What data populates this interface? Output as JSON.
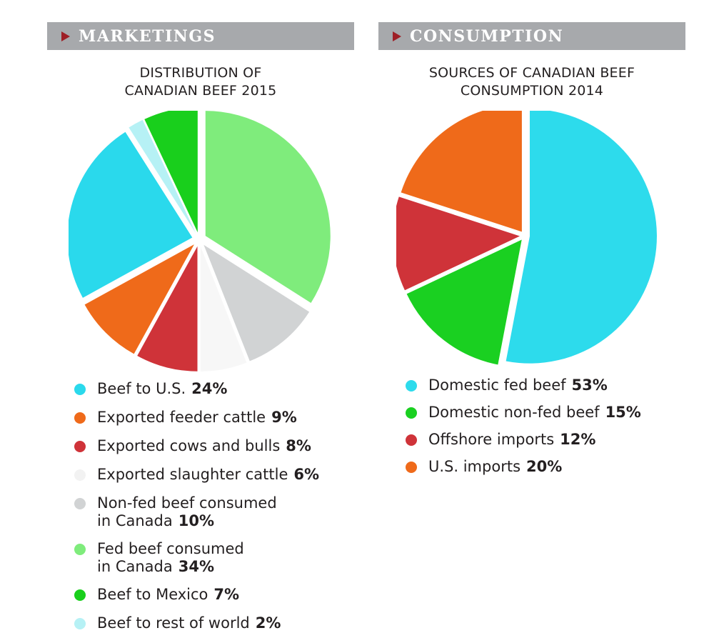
{
  "chart_data": [
    {
      "type": "pie",
      "section": "MARKETINGS",
      "title": "DISTRIBUTION OF CANADIAN BEEF 2015",
      "title_lines": [
        "DISTRIBUTION OF",
        "CANADIAN BEEF 2015"
      ],
      "start_angle_deg": 0,
      "slices": [
        {
          "label": "Fed beef consumed in Canada",
          "lines": [
            "Fed beef consumed",
            "in Canada"
          ],
          "value": 34,
          "display": "34%",
          "color": "#7fec7c"
        },
        {
          "label": "Non-fed beef consumed in Canada",
          "lines": [
            "Non-fed beef consumed",
            "in Canada"
          ],
          "value": 10,
          "display": "10%",
          "color": "#d1d3d4"
        },
        {
          "label": "Exported slaughter cattle",
          "lines": [
            "Exported slaughter cattle"
          ],
          "value": 6,
          "display": "6%",
          "color": "#f7f7f7"
        },
        {
          "label": "Exported cows and bulls",
          "lines": [
            "Exported cows and bulls"
          ],
          "value": 8,
          "display": "8%",
          "color": "#cf3339"
        },
        {
          "label": "Exported feeder cattle",
          "lines": [
            "Exported feeder cattle"
          ],
          "value": 9,
          "display": "9%",
          "color": "#ef6a1a"
        },
        {
          "label": "Beef to U.S.",
          "lines": [
            "Beef to U.S."
          ],
          "value": 24,
          "display": "24%",
          "color": "#2ad9ec"
        },
        {
          "label": "Beef to rest of world",
          "lines": [
            "Beef to rest of world"
          ],
          "value": 2,
          "display": "2%",
          "color": "#b6f1f5"
        },
        {
          "label": "Beef to Mexico",
          "lines": [
            "Beef to Mexico"
          ],
          "value": 7,
          "display": "7%",
          "color": "#19cf1c"
        }
      ],
      "legend_order": [
        5,
        4,
        3,
        2,
        1,
        0,
        7,
        6
      ]
    },
    {
      "type": "pie",
      "section": "CONSUMPTION",
      "title": "SOURCES OF CANADIAN BEEF CONSUMPTION 2014",
      "title_lines": [
        "SOURCES OF CANADIAN BEEF",
        "CONSUMPTION 2014"
      ],
      "start_angle_deg": 0,
      "slices": [
        {
          "label": "Domestic fed beef",
          "lines": [
            "Domestic fed beef"
          ],
          "value": 53,
          "display": "53%",
          "color": "#2ddbec"
        },
        {
          "label": "Domestic non-fed beef",
          "lines": [
            "Domestic non-fed beef"
          ],
          "value": 15,
          "display": "15%",
          "color": "#1ad021"
        },
        {
          "label": "Offshore imports",
          "lines": [
            "Offshore imports"
          ],
          "value": 12,
          "display": "12%",
          "color": "#cf3339"
        },
        {
          "label": "U.S. imports",
          "lines": [
            "U.S. imports"
          ],
          "value": 20,
          "display": "20%",
          "color": "#ef6a1a"
        }
      ],
      "legend_order": [
        0,
        1,
        2,
        3
      ]
    }
  ]
}
